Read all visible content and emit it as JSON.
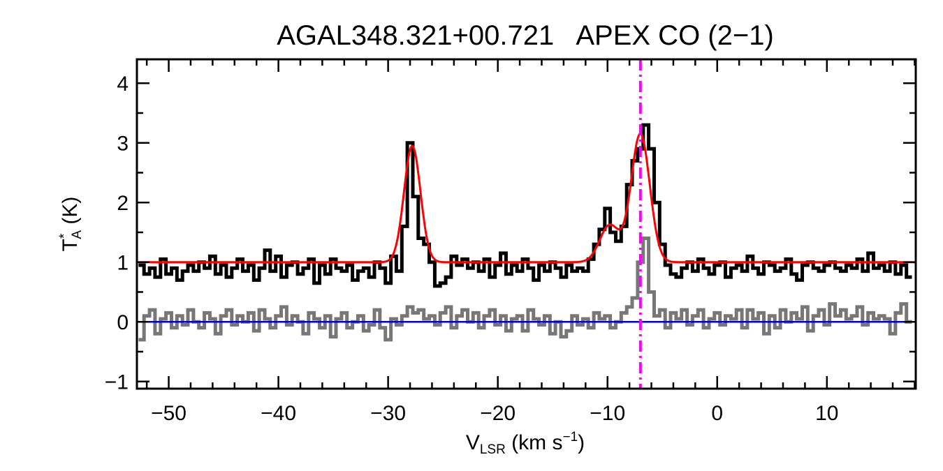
{
  "chart_data": {
    "type": "line",
    "title": "AGAL348.321+00.721   APEX CO (2−1)",
    "xlabel": {
      "main": "V",
      "sub": "LSR",
      "rest": " (km s",
      "sup": "−1",
      "close": ")"
    },
    "ylabel": {
      "main": "T",
      "sup": "*",
      "sub": "A",
      "rest": " (K)"
    },
    "xlim": [
      -52.9,
      18.1
    ],
    "ylim": [
      -1.12,
      4.4
    ],
    "xticks": [
      -50,
      -40,
      -30,
      -20,
      -10,
      0,
      10
    ],
    "xtick_labels": [
      "−50",
      "−40",
      "−30",
      "−20",
      "−10",
      "0",
      "10"
    ],
    "yticks": [
      -1,
      0,
      1,
      2,
      3,
      4
    ],
    "ytick_labels": [
      "−1",
      "0",
      "1",
      "2",
      "3",
      "4"
    ],
    "grid": false,
    "x_start": -52.5,
    "x_step": 0.5,
    "series": [
      {
        "role": "spectrum",
        "color": "#000000",
        "style": "step",
        "values": [
          0.95,
          0.8,
          0.9,
          0.75,
          1.05,
          0.8,
          0.9,
          0.7,
          0.85,
          0.95,
          0.85,
          1.0,
          0.9,
          1.1,
          0.8,
          0.95,
          0.75,
          0.9,
          1.05,
          0.85,
          0.95,
          0.7,
          0.9,
          1.2,
          0.85,
          1.1,
          0.75,
          0.95,
          1.0,
          0.8,
          0.9,
          1.05,
          0.65,
          0.95,
          0.8,
          1.05,
          0.9,
          0.85,
          0.95,
          0.7,
          0.85,
          0.9,
          0.75,
          1.0,
          0.9,
          0.65,
          1.1,
          0.85,
          1.6,
          3.0,
          2.1,
          1.4,
          1.3,
          1.0,
          0.6,
          0.65,
          0.75,
          1.1,
          0.95,
          1.05,
          0.9,
          1.0,
          0.85,
          1.05,
          0.75,
          0.95,
          1.15,
          0.8,
          0.95,
          0.85,
          1.05,
          0.9,
          0.7,
          0.95,
          0.85,
          1.0,
          0.9,
          0.75,
          0.95,
          0.85,
          0.9,
          0.85,
          1.05,
          1.3,
          1.55,
          1.9,
          1.5,
          1.35,
          1.6,
          2.3,
          2.7,
          2.9,
          3.3,
          2.9,
          2.0,
          1.3,
          0.95,
          0.8,
          0.75,
          0.9,
          1.0,
          0.85,
          1.05,
          0.9,
          0.8,
          0.95,
          1.0,
          0.75,
          0.9,
          0.95,
          0.85,
          1.1,
          0.9,
          0.8,
          1.0,
          0.95,
          0.85,
          0.9,
          1.05,
          0.8,
          0.7,
          0.95,
          1.0,
          0.9,
          0.85,
          0.95,
          1.0,
          0.9,
          0.85,
          0.95,
          0.9,
          1.05,
          0.85,
          1.15,
          0.9,
          0.95,
          0.85,
          1.0,
          0.8,
          0.95,
          0.75
        ]
      },
      {
        "role": "residual",
        "color": "#777777",
        "style": "step",
        "values": [
          -0.3,
          0.1,
          0.2,
          -0.2,
          0.05,
          0.15,
          -0.1,
          0.1,
          -0.05,
          0.2,
          0.0,
          -0.1,
          0.15,
          0.05,
          -0.2,
          0.1,
          0.2,
          -0.05,
          0.1,
          0.0,
          0.15,
          -0.15,
          0.2,
          0.05,
          -0.1,
          0.1,
          0.25,
          -0.05,
          0.1,
          0.0,
          -0.2,
          0.15,
          0.05,
          -0.1,
          0.1,
          -0.25,
          0.05,
          0.15,
          -0.1,
          0.0,
          0.1,
          -0.15,
          -0.05,
          0.2,
          -0.1,
          -0.3,
          0.05,
          -0.05,
          0.1,
          0.25,
          0.15,
          0.2,
          0.05,
          0.1,
          -0.05,
          0.15,
          0.25,
          -0.1,
          0.1,
          0.2,
          0.0,
          0.15,
          -0.1,
          0.1,
          0.2,
          -0.05,
          0.1,
          -0.15,
          0.05,
          0.1,
          -0.15,
          0.2,
          0.05,
          -0.05,
          0.1,
          -0.2,
          0.0,
          -0.25,
          -0.15,
          0.1,
          -0.05,
          0.05,
          -0.1,
          0.15,
          0.05,
          0.1,
          -0.1,
          0.0,
          0.15,
          0.25,
          0.4,
          1.0,
          1.4,
          0.5,
          0.1,
          0.2,
          -0.1,
          0.15,
          0.05,
          0.2,
          -0.05,
          0.1,
          0.2,
          -0.1,
          0.05,
          0.15,
          -0.05,
          0.1,
          0.05,
          0.2,
          -0.1,
          0.2,
          0.05,
          0.15,
          -0.2,
          0.1,
          -0.1,
          0.2,
          0.0,
          0.15,
          0.05,
          0.25,
          -0.15,
          0.1,
          0.2,
          -0.05,
          0.3,
          0.1,
          0.2,
          0.05,
          0.1,
          0.25,
          -0.05,
          0.15,
          0.05,
          0.1,
          0.05,
          -0.2,
          0.15,
          0.3,
          0.0
        ]
      }
    ],
    "fit": {
      "color": "#ff0000",
      "baseline": 1.0,
      "gaussians": [
        {
          "center": -27.8,
          "amplitude": 1.95,
          "sigma": 0.75
        },
        {
          "center": -7.0,
          "amplitude": 2.15,
          "sigma": 0.85
        },
        {
          "center": -9.8,
          "amplitude": 0.62,
          "sigma": 0.9
        }
      ]
    },
    "zero_line": {
      "y": 0,
      "color": "#0000cc"
    },
    "marker_line": {
      "x": -7.0,
      "color": "#ff00ff",
      "style": "dash-dot"
    }
  }
}
